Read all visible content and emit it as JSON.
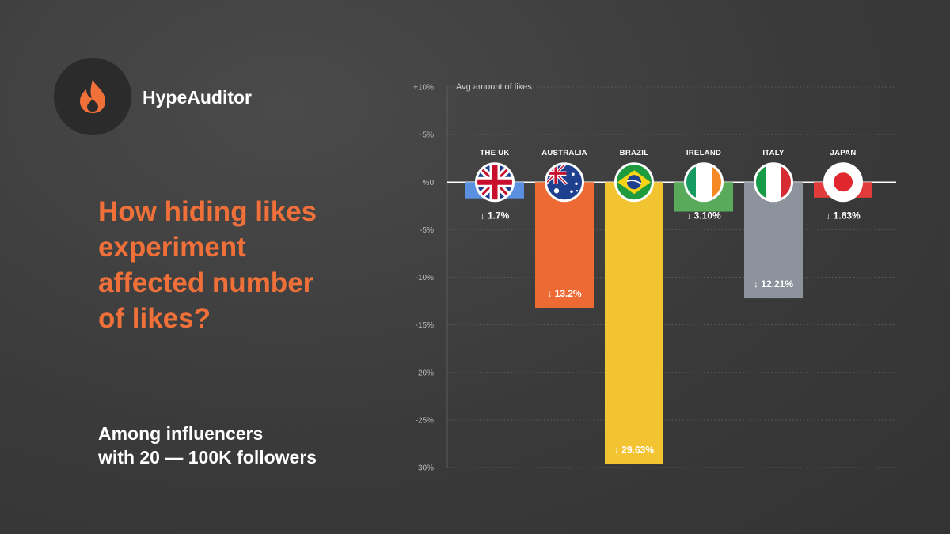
{
  "brand": {
    "name": "HypeAuditor",
    "logo_icon": "flame-icon",
    "logo_color": "#f0703a"
  },
  "headline": [
    "How hiding likes",
    "experiment",
    "affected number",
    "of likes?"
  ],
  "subtitle": [
    "Among influencers",
    "with 20 — 100K followers"
  ],
  "colors": {
    "accent": "#f0703a",
    "background": "#3b3b3b"
  },
  "chart_data": {
    "type": "bar",
    "ylabel": "Avg amount of likes",
    "ylim": [
      -30,
      10
    ],
    "yticks": [
      10,
      5,
      0,
      -5,
      -10,
      -15,
      -20,
      -25,
      -30
    ],
    "ytick_labels": [
      "+10%",
      "+5%",
      "%0",
      "-5%",
      "-10%",
      "-15%",
      "-20%",
      "-25%",
      "-30%"
    ],
    "grid": true,
    "categories": [
      "THE UK",
      "AUSTRALIA",
      "BRAZIL",
      "IRELAND",
      "ITALY",
      "JAPAN"
    ],
    "values": [
      -1.7,
      -13.2,
      -29.63,
      -3.1,
      -12.21,
      -1.63
    ],
    "value_labels": [
      "↓ 1.7%",
      "↓ 13.2%",
      "↓ 29.63%",
      "↓ 3.10%",
      "↓ 12.21%",
      "↓ 1.63%"
    ],
    "bar_colors": [
      "#5b8fe0",
      "#ee6a35",
      "#f2c432",
      "#5aaa5c",
      "#8c939c",
      "#e23b3b"
    ],
    "flags": [
      "uk-flag-icon",
      "australia-flag-icon",
      "brazil-flag-icon",
      "ireland-flag-icon",
      "italy-flag-icon",
      "japan-flag-icon"
    ]
  }
}
